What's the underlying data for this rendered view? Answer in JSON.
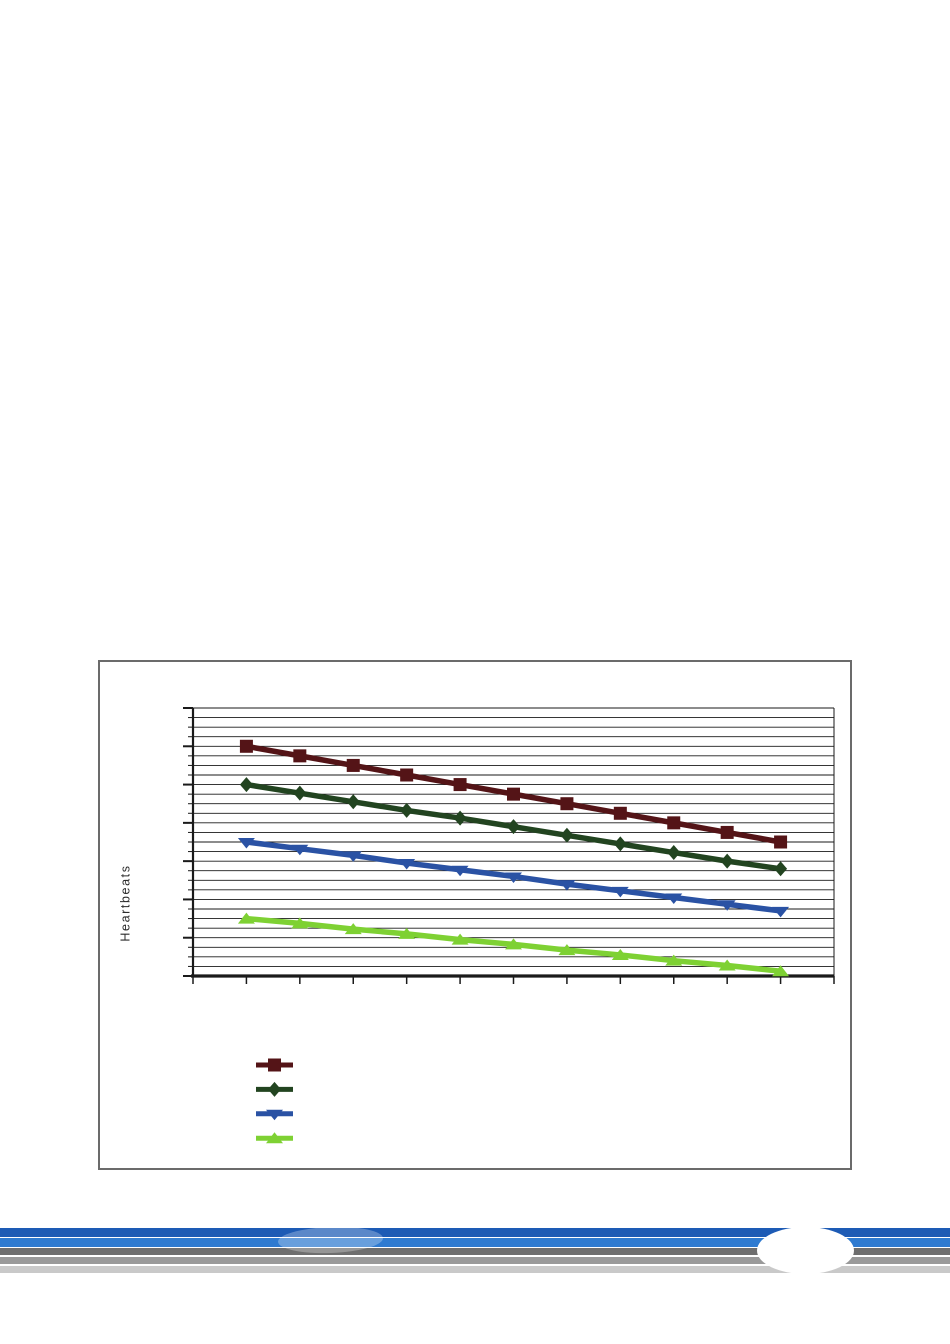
{
  "page": {
    "background": "#ffffff"
  },
  "chart_data": {
    "type": "line",
    "title": "",
    "xlabel": "",
    "ylabel": "Heartbeats",
    "x": [
      1,
      2,
      3,
      4,
      5,
      6,
      7,
      8,
      9,
      10,
      11
    ],
    "x_tick_count": 13,
    "x_tick_labels_visible": false,
    "y_tick_labels_visible": false,
    "ylim": [
      0,
      28
    ],
    "minor_grid_step": 1,
    "major_tick_step": 4,
    "grid": "horizontal minor gridlines on, vertical gridlines off",
    "legend_position": "below plot, left; marker swatches only, no text labels",
    "series": [
      {
        "name": "series-1-dark-red",
        "color": "#541417",
        "marker": "square",
        "values": [
          24,
          23,
          22,
          21,
          20,
          19,
          18,
          17,
          16,
          15,
          14
        ]
      },
      {
        "name": "series-2-dark-green",
        "color": "#224420",
        "marker": "diamond",
        "values": [
          20,
          19.1,
          18.2,
          17.3,
          16.5,
          15.6,
          14.7,
          13.8,
          12.9,
          12,
          11.2
        ]
      },
      {
        "name": "series-3-blue",
        "color": "#2a52a4",
        "marker": "triangle-down",
        "values": [
          14,
          13.3,
          12.6,
          11.8,
          11.1,
          10.4,
          9.6,
          8.9,
          8.2,
          7.5,
          6.8
        ]
      },
      {
        "name": "series-4-light-green",
        "color": "#7ed133",
        "marker": "triangle-up",
        "values": [
          6,
          5.5,
          4.9,
          4.4,
          3.8,
          3.3,
          2.7,
          2.2,
          1.6,
          1.1,
          0.5
        ]
      }
    ],
    "axis_color": "#1a1a1a",
    "frame_border_color": "#6b6b6b"
  },
  "footer": {
    "stripe_colors": [
      "#1d5bb5",
      "#2e7ad0",
      "#6e6e6e",
      "#999999",
      "#c9c9c9"
    ],
    "ellipse_color": "#ffffff"
  }
}
